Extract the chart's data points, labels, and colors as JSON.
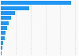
{
  "values": [
    47000,
    19000,
    9500,
    7000,
    5500,
    4200,
    3200,
    2500,
    1800,
    1000,
    350
  ],
  "bar_color": "#2196F3",
  "background_color": "#f9f9f9",
  "xlim": [
    0,
    52000
  ],
  "grid_color": "#d0d0d0",
  "grid_values": [
    10000,
    20000,
    30000,
    40000,
    50000
  ],
  "n_bars": 11
}
